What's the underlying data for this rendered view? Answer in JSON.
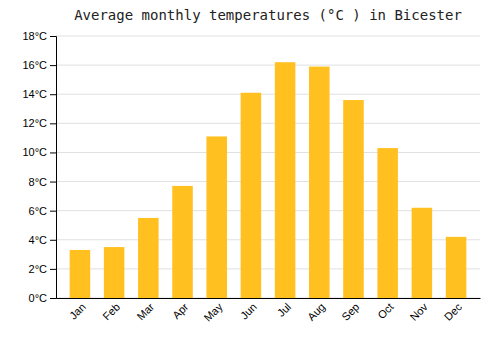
{
  "chart_data": {
    "type": "bar",
    "title": "Average monthly temperatures (°C ) in Bicester",
    "categories": [
      "Jan",
      "Feb",
      "Mar",
      "Apr",
      "May",
      "Jun",
      "Jul",
      "Aug",
      "Sep",
      "Oct",
      "Nov",
      "Dec"
    ],
    "values": [
      3.3,
      3.5,
      5.5,
      7.7,
      11.1,
      14.1,
      16.2,
      15.9,
      13.6,
      10.3,
      6.2,
      4.2
    ],
    "color": "#FFC020",
    "ylim": [
      0,
      18
    ],
    "yticks": [
      {
        "value": 0,
        "label": "0°C"
      },
      {
        "value": 2,
        "label": "2°C"
      },
      {
        "value": 4,
        "label": "4°C"
      },
      {
        "value": 6,
        "label": "6°C"
      },
      {
        "value": 8,
        "label": "8°C"
      },
      {
        "value": 10,
        "label": "10°C"
      },
      {
        "value": 12,
        "label": "12°C"
      },
      {
        "value": 14,
        "label": "14°C"
      },
      {
        "value": 16,
        "label": "16°C"
      },
      {
        "value": 18,
        "label": "18°C"
      }
    ],
    "grid": true
  }
}
